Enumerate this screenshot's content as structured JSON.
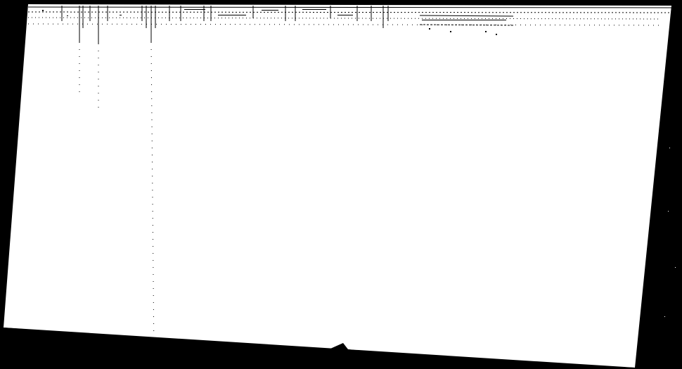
{
  "document": {
    "kind": "scanned form",
    "header_stamp": "",
    "colors": {
      "paper": "#ffffff",
      "ink": "#000000",
      "background": "#000000"
    }
  }
}
